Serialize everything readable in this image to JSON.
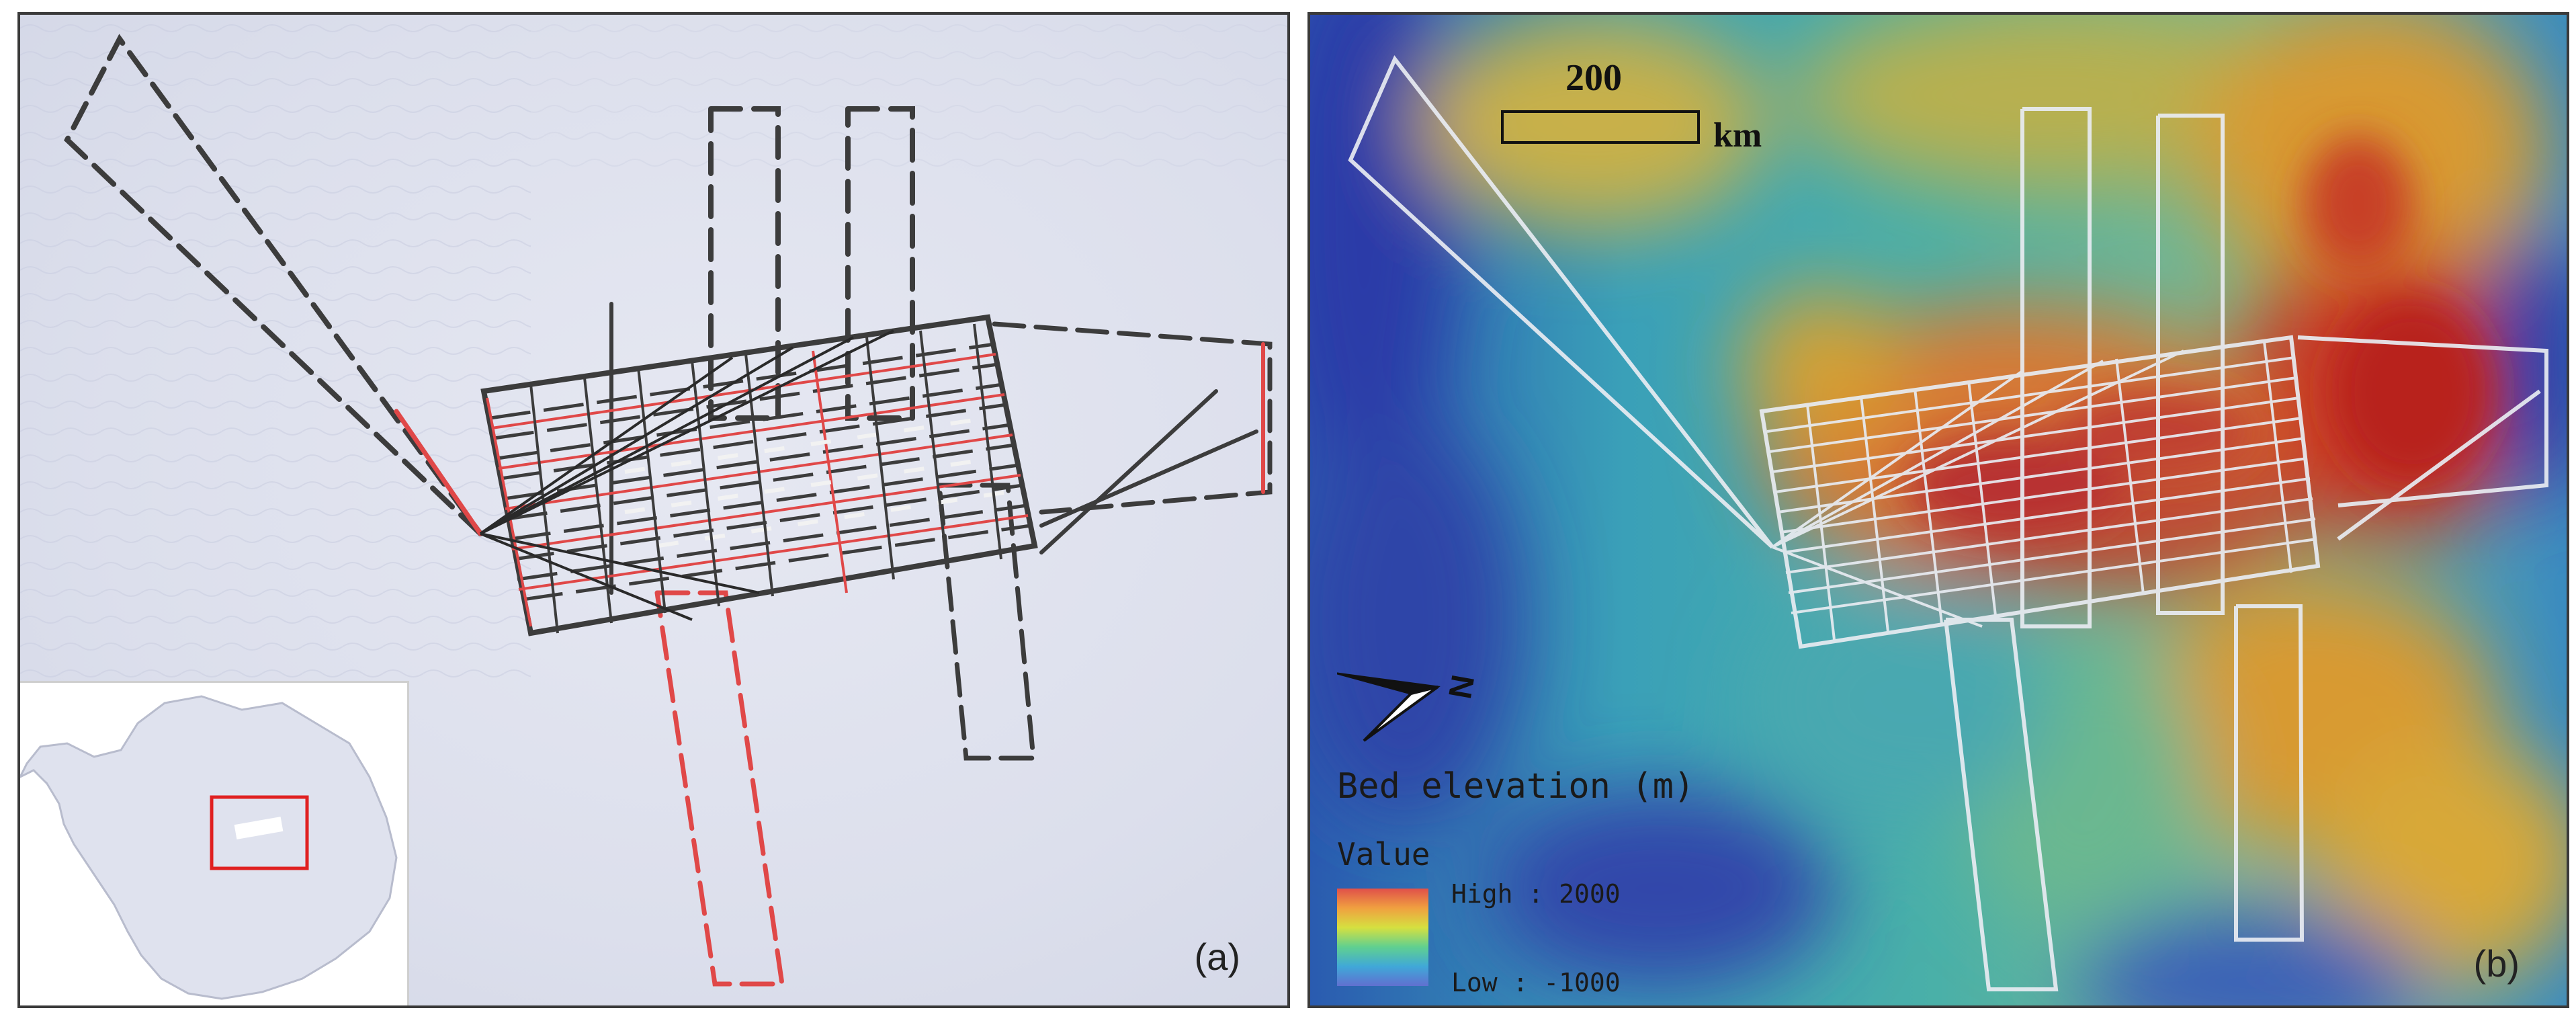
{
  "panels": {
    "a": {
      "label": "(a)"
    },
    "b": {
      "label": "(b)"
    }
  },
  "scale_bar": {
    "value": "200",
    "unit": "km"
  },
  "north_arrow": {
    "label": "N"
  },
  "legend": {
    "title": "Bed elevation (m)",
    "subtitle": "Value",
    "high_label": "High : 2000",
    "low_label": "Low : -1000",
    "ramp_colors": [
      "#e0504a",
      "#f0a040",
      "#d6e040",
      "#60d090",
      "#40a8d8",
      "#6070d0"
    ]
  },
  "colors": {
    "ice_surface": "#dfe2ee",
    "track_dark": "#3c3c3c",
    "track_red": "#e04848",
    "track_white": "#f2f2f2",
    "inset_box": "#e02020"
  }
}
